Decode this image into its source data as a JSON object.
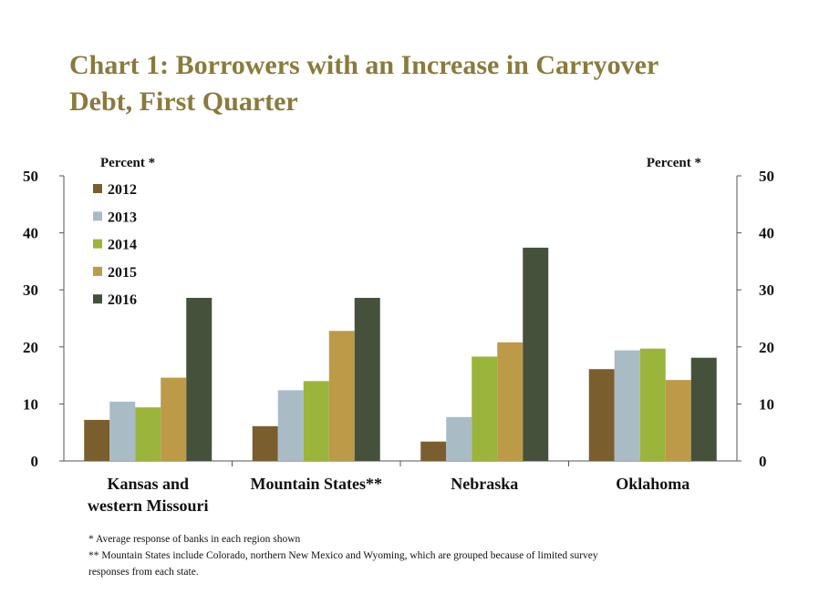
{
  "title_lines": [
    "Chart 1: Borrowers with an Increase in Carryover",
    "Debt, First Quarter"
  ],
  "footnotes": [
    "* Average response of  banks in each region shown",
    "** Mountain States include Colorado, northern New Mexico and Wyoming, which are grouped because of limited survey",
    "responses from each state."
  ],
  "colors": {
    "2012": "#7a5e2e",
    "2013": "#a9bcc6",
    "2014": "#9ab43c",
    "2015": "#bc9a48",
    "2016": "#46513c"
  },
  "chart_data": {
    "type": "bar",
    "categories": [
      [
        "Kansas and",
        "western Missouri"
      ],
      [
        "Mountain States**"
      ],
      [
        "Nebraska"
      ],
      [
        "Oklahoma"
      ]
    ],
    "series": [
      {
        "name": "2012",
        "values": [
          7.2,
          6.1,
          3.4,
          16.1
        ]
      },
      {
        "name": "2013",
        "values": [
          10.4,
          12.4,
          7.7,
          19.4
        ]
      },
      {
        "name": "2014",
        "values": [
          9.4,
          14.0,
          18.3,
          19.7
        ]
      },
      {
        "name": "2015",
        "values": [
          14.6,
          22.8,
          20.8,
          14.2
        ]
      },
      {
        "name": "2016",
        "values": [
          28.6,
          28.6,
          37.4,
          18.1
        ]
      }
    ],
    "ylabel_left": "Percent *",
    "ylabel_right": "Percent *",
    "ylim": [
      0,
      50
    ],
    "yticks": [
      "0",
      "10",
      "20",
      "30",
      "40",
      "50"
    ],
    "legend_position": "top-left",
    "grid": false
  }
}
